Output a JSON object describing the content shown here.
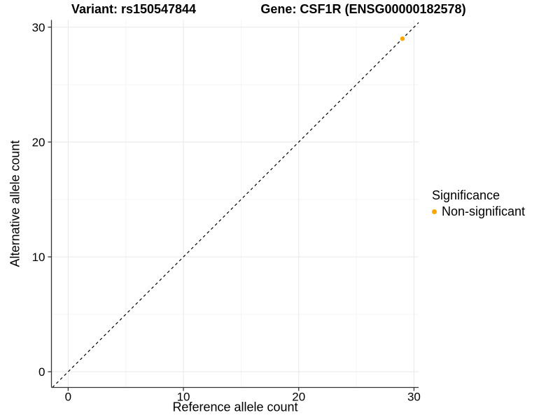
{
  "titles": {
    "variant": "Variant: rs150547844",
    "gene": "Gene: CSF1R (ENSG00000182578)"
  },
  "axes": {
    "x_label": "Reference allele count",
    "y_label": "Alternative allele count"
  },
  "legend": {
    "title": "Significance",
    "items": [
      {
        "label": "Non-significant",
        "color": "#FFA500"
      }
    ]
  },
  "chart_data": {
    "type": "scatter",
    "title": "Variant: rs150547844 — Gene: CSF1R (ENSG00000182578)",
    "xlabel": "Reference allele count",
    "ylabel": "Alternative allele count",
    "xlim": [
      -1.45,
      30.4
    ],
    "ylim": [
      -1.37,
      30.63
    ],
    "x_ticks": [
      0,
      10,
      20,
      30
    ],
    "y_ticks": [
      0,
      10,
      20,
      30
    ],
    "x_minor_ticks": [
      5,
      15,
      25
    ],
    "y_minor_ticks": [
      5,
      15,
      25
    ],
    "grid": "major+minor",
    "legend_position": "right",
    "identity_line": {
      "style": "dashed",
      "color": "#000000",
      "from": [
        -1.37,
        -1.37
      ],
      "to": [
        30.4,
        30.4
      ]
    },
    "series": [
      {
        "name": "Non-significant",
        "color": "#FFA500",
        "points": [
          [
            29,
            29
          ]
        ]
      }
    ],
    "style_colors": {
      "grid_major": "#e8e8e8",
      "grid_minor": "#f4f4f4",
      "axis_line": "#333333"
    }
  }
}
